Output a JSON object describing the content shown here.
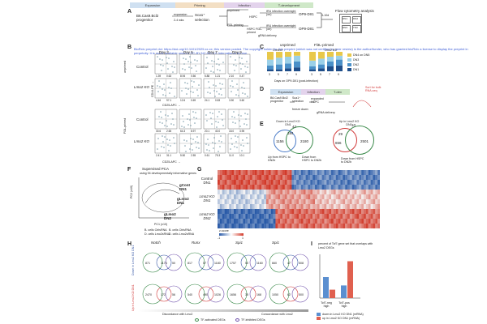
{
  "header": {
    "stages": [
      {
        "label": "Expansion",
        "color": "#cfe0f1"
      },
      {
        "label": "Priming",
        "color": "#f3dfc4"
      },
      {
        "label": "Infection",
        "color": "#e3d3ec"
      },
      {
        "label": "T-development",
        "color": "#cfe8c8"
      }
    ]
  },
  "panelA": {
    "letter": "A",
    "progenitor": "B6.Cas9.Bcl2 progenitor",
    "expansion": "expansion",
    "duration": "2-4 wks",
    "selection": "Sca1⁺ selection",
    "unprimed": "unprimed",
    "fl3l_priming": "Fl3L priming",
    "hspc": "HSPC",
    "hspc_primed": "HSPC Fl3L-primed",
    "infect1": "IRU infection overnight (on)",
    "infect2": "IRU infection overnight (on)",
    "grna": "gRNA delivery",
    "op9": "OP9-DII1",
    "days": "3-10d",
    "flow_title": "Flow cytometry analysis",
    "flow_gates": [
      "DN1",
      "DN2",
      "DN3",
      "TN3"
    ]
  },
  "watermark": "BioRxiv preprint doi: https://doi.org/10.1101/2025.xx.xx; this version posted. The copyright holder for this preprint (which was not certified by peer review) is the author/funder, who has granted bioRxiv a license to display the preprint in perpetuity. It is made available under a CC-BY-NC-ND 4.0 International license.",
  "panelB": {
    "letter": "B",
    "unprimed": "unprimed",
    "fl3l_primed": "Fl3L-primed",
    "days": [
      "Day 3",
      "Day 5",
      "Day 7",
      "Day 9"
    ],
    "rows": [
      "Control",
      "Lmo2 KO",
      "Control",
      "Lmo2 KO"
    ],
    "xaxis": "CD25-APC →",
    "yaxis": "CD44-PE →",
    "quadrants": [
      [
        "1.39",
        "0.63",
        "8.94",
        "0.56",
        "6.88",
        "1.21",
        "2.10",
        "0.47"
      ],
      [
        "4.46",
        "97.1",
        "12.6",
        "0.69",
        "24.1",
        "0.83",
        "3.90",
        "3.60"
      ],
      [
        "30.6",
        "2.65",
        "64.3",
        "8.97",
        "20.1",
        "40.0",
        "18.0",
        "3.95"
      ],
      [
        "2.41",
        "31.1",
        "5.50",
        "2.55",
        "0.61",
        "75.3",
        "11.0",
        "10.1"
      ]
    ]
  },
  "panelC": {
    "letter": "C",
    "unprimed": "unprimed",
    "fl3l_primed": "Fl3L-primed",
    "subtitle_left": "Control",
    "subtitle_right": "Lmo2 KO",
    "xaxis": "Days on OP9-DII1 (post-infection)",
    "legend": [
      "DN4 on DN5",
      "DN3",
      "DN2",
      "DN1"
    ],
    "days": [
      "3",
      "5",
      "7",
      "9",
      "3",
      "5",
      "7",
      "9"
    ],
    "bars": [
      [
        0.1,
        0.2,
        0.3,
        0.4
      ],
      [
        0.1,
        0.25,
        0.35,
        0.3
      ],
      [
        0.15,
        0.25,
        0.35,
        0.25
      ],
      [
        0.2,
        0.3,
        0.3,
        0.2
      ],
      [
        0.1,
        0.15,
        0.3,
        0.45
      ],
      [
        0.15,
        0.2,
        0.3,
        0.35
      ],
      [
        0.25,
        0.25,
        0.25,
        0.25
      ],
      [
        0.3,
        0.3,
        0.2,
        0.2
      ]
    ]
  },
  "panelD": {
    "letter": "D",
    "stages": [
      "Expansion",
      "Infection",
      "T-dev"
    ],
    "progenitor": "B6.Cas9.Bcl2 progenitor",
    "selection": "Sca1⁺ selection",
    "freeze": "freeze down",
    "expanded": "expanded HSPC",
    "grna": "gRNA delivery",
    "sort": "Sort for bulk RNA-seq"
  },
  "panelE": {
    "letter": "E",
    "down_label": "Down in Lmo2 KO DN1",
    "up_label": "Up in Lmo2 KO DN1",
    "left_only": "1156",
    "left_overlap": "184",
    "left_right": "2180",
    "left_top": "47",
    "right_only": "29",
    "right_overlap": "656",
    "right_right": "2501",
    "right_top": "10",
    "left_bottom": "Up from HSPC to DN2b",
    "mid_bottom": "Down from HSPC to DN2b",
    "right_bottom": "Down from HSPC to DN2b"
  },
  "panelF": {
    "letter": "F",
    "title": "Supervised PCA",
    "subtitle": "using 94 developmentally informative genes",
    "xaxis": "PC1 (x10)",
    "yaxis": "PC2 (x10)",
    "labels": [
      "gCont DN1",
      "gLmo2 DN1",
      "gLmo2 DN2"
    ],
    "legend": [
      "B. cells CtrlsRNA",
      "B. cells CtrlsRNA",
      "D. cells Lmo2sRNA",
      "D. cells Lmo2sRNA"
    ]
  },
  "panelG": {
    "letter": "G",
    "rows": [
      "Control DN1",
      "Lmo2 KO DN1",
      "Lmo2 KO DN2"
    ],
    "scale_label": "z-score",
    "scale_min": "-1",
    "scale_max": "1"
  },
  "panelH": {
    "letter": "H",
    "columns": [
      "Notch",
      "Runx",
      "Spi1",
      "Spi1"
    ],
    "side_top": "Down in Lmo2 KO DN1",
    "side_bottom": "Up in Lmo2 KO DN1",
    "top_nums": [
      [
        "871",
        "1174",
        "50"
      ],
      [
        "817",
        "57",
        "1180"
      ],
      [
        "1757",
        "50",
        "1160"
      ],
      [
        "660",
        "47",
        "508"
      ]
    ],
    "bottom_nums": [
      [
        "2470",
        "172",
        "56"
      ],
      [
        "540",
        "490",
        "1026"
      ],
      [
        "1656",
        "35",
        "168"
      ],
      [
        "1050",
        "62",
        "500"
      ]
    ],
    "discordance": "Discordance with Lmo2",
    "concordance": "Concordance with Lmo2",
    "legend_a": "TF-activated DEGs",
    "legend_b": "TF-inhibited DEGs"
  },
  "panelI": {
    "letter": "I",
    "title": "percent of Tcf7 gene set that overlaps with Lmo2 DEGs",
    "categories": [
      "Tcf7-neg high",
      "Tcf7-pos high"
    ],
    "series": [
      {
        "name": "down in Lmo2 KO DN1 (mRNA)",
        "color": "#5b8fd0",
        "values": [
          20,
          12
        ]
      },
      {
        "name": "up in Lmo2 KO DN1 (mRNA)",
        "color": "#e0604f",
        "values": [
          8,
          35
        ]
      }
    ],
    "ylim": [
      0,
      40
    ]
  }
}
